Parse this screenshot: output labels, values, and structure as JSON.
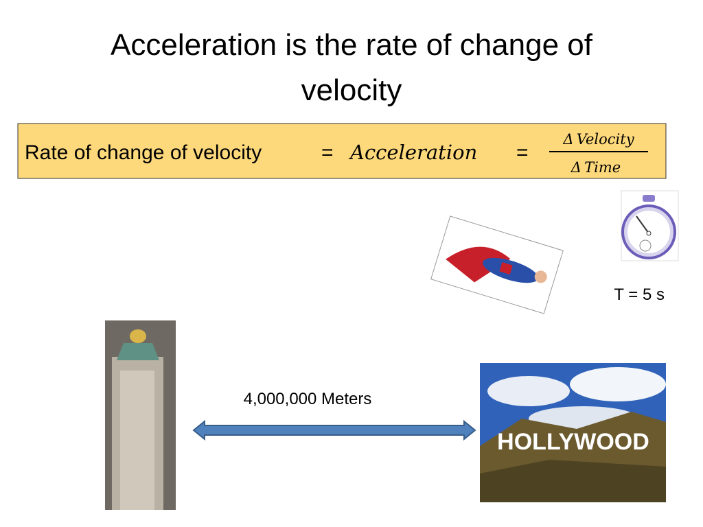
{
  "slide": {
    "title_lines": [
      "Acceleration is the rate of change of",
      "velocity"
    ],
    "formula": {
      "lhs": "Rate of change of velocity",
      "equals": "=",
      "middle": "Acceleration",
      "numerator": "Δ Velocity",
      "denominator": "Δ Time"
    },
    "time_label": "T = 5 s",
    "distance_label": "4,000,000 Meters",
    "sign_text": "HOLLYWOOD"
  }
}
